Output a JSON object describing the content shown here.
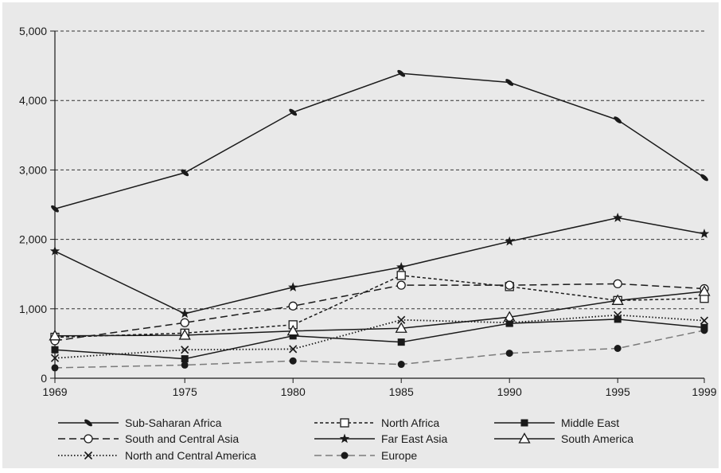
{
  "chart_data": {
    "type": "line",
    "title": "",
    "xlabel": "",
    "ylabel": "",
    "x": [
      1969,
      1975,
      1980,
      1985,
      1990,
      1995,
      1999
    ],
    "x_tick_labels": [
      "1969",
      "1975",
      "1980",
      "1985",
      "1990",
      "1995",
      "1999"
    ],
    "y_ticks": [
      0,
      1000,
      2000,
      3000,
      4000,
      5000
    ],
    "y_tick_labels": [
      "0",
      "1,000",
      "2,000",
      "3,000",
      "4,000",
      "5,000"
    ],
    "ylim": [
      0,
      5000
    ],
    "grid": "horizontal dashed",
    "legend_position": "bottom",
    "series": [
      {
        "name": "Sub-Saharan Africa",
        "marker": "slash",
        "dash": "solid",
        "color": "#1a1a1a",
        "values": [
          2440,
          2960,
          3830,
          4390,
          4260,
          3720,
          2890
        ]
      },
      {
        "name": "North Africa",
        "marker": "square-open",
        "dash": "short-dash",
        "color": "#1a1a1a",
        "values": [
          590,
          650,
          770,
          1480,
          1320,
          1120,
          1150
        ]
      },
      {
        "name": "Middle East",
        "marker": "square-filled",
        "dash": "solid",
        "color": "#1a1a1a",
        "values": [
          410,
          280,
          610,
          520,
          790,
          850,
          730
        ]
      },
      {
        "name": "South and Central Asia",
        "marker": "circle-open",
        "dash": "long-dash",
        "color": "#1a1a1a",
        "values": [
          540,
          800,
          1040,
          1340,
          1340,
          1360,
          1290
        ]
      },
      {
        "name": "Far East Asia",
        "marker": "star",
        "dash": "solid",
        "color": "#1a1a1a",
        "values": [
          1830,
          930,
          1310,
          1600,
          1970,
          2310,
          2080
        ]
      },
      {
        "name": "South America",
        "marker": "triangle-open",
        "dash": "solid",
        "color": "#1a1a1a",
        "values": [
          610,
          620,
          680,
          720,
          880,
          1120,
          1250
        ]
      },
      {
        "name": "North and Central America",
        "marker": "x",
        "dash": "dotted",
        "color": "#1a1a1a",
        "values": [
          290,
          410,
          420,
          840,
          800,
          910,
          830
        ]
      },
      {
        "name": "Europe",
        "marker": "circle-filled",
        "dash": "long-dash",
        "color": "#7a7a7a",
        "values": [
          150,
          190,
          250,
          200,
          360,
          430,
          690
        ]
      }
    ]
  }
}
